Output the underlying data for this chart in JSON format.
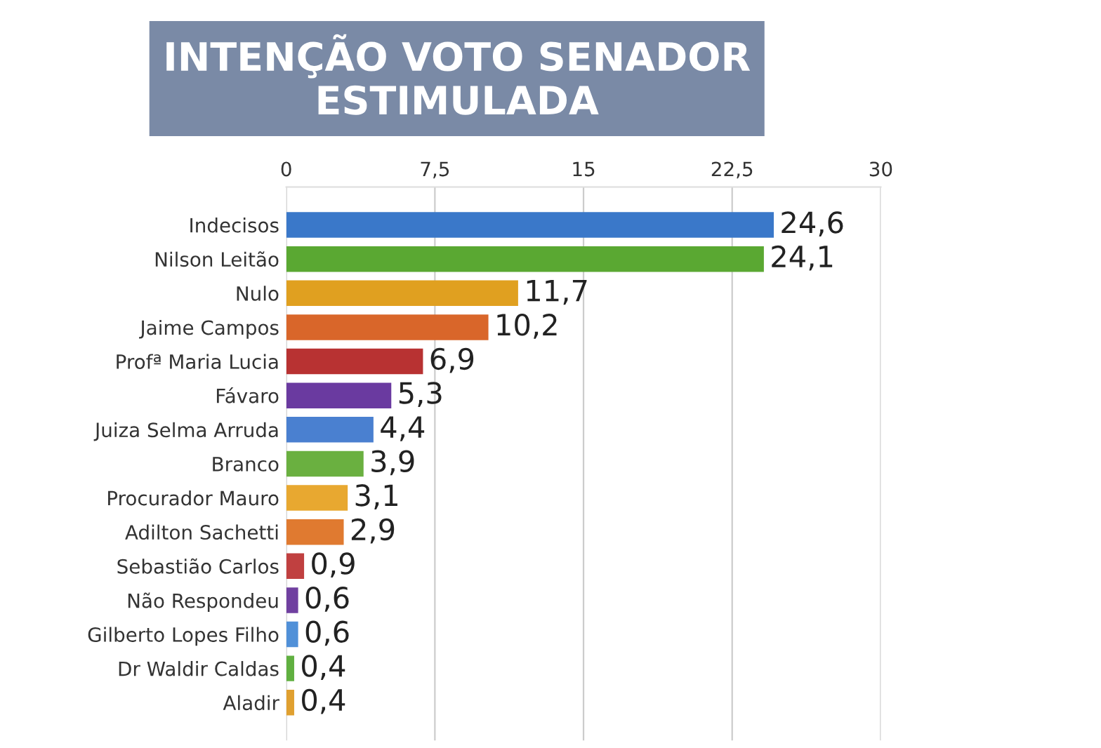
{
  "chart_data": {
    "type": "bar",
    "orientation": "horizontal",
    "title": "INTENÇÃO VOTO SENADOR\nESTIMULADA",
    "categories": [
      "Indecisos",
      "Nilson Leitão",
      "Nulo",
      "Jaime Campos",
      "Profª Maria Lucia",
      "Fávaro",
      "Juiza Selma Arruda",
      "Branco",
      "Procurador Mauro",
      "Adilton Sachetti",
      "Sebastião Carlos",
      "Não Respondeu",
      "Gilberto Lopes Filho",
      "Dr Waldir Caldas",
      "Aladir"
    ],
    "values": [
      24.6,
      24.1,
      11.7,
      10.2,
      6.9,
      5.3,
      4.4,
      3.9,
      3.1,
      2.9,
      0.9,
      0.6,
      0.6,
      0.4,
      0.4
    ],
    "value_labels": [
      "24,6",
      "24,1",
      "11,7",
      "10,2",
      "6,9",
      "5,3",
      "4,4",
      "3,9",
      "3,1",
      "2,9",
      "0,9",
      "0,6",
      "0,6",
      "0,4",
      "0,4"
    ],
    "colors": [
      "#3a78c9",
      "#5aa832",
      "#e0a020",
      "#d9662a",
      "#b83232",
      "#6a3aa0",
      "#4a80d0",
      "#6ab040",
      "#e8a830",
      "#e07a30",
      "#c04040",
      "#7040a0",
      "#5090d8",
      "#60b040",
      "#e0a030"
    ],
    "xlim": [
      0,
      30
    ],
    "xticks": [
      0,
      {
        "value": 7.5,
        "label": "7,5"
      },
      15,
      {
        "value": 22.5,
        "label": "22,5"
      },
      30
    ],
    "grid": "x"
  }
}
